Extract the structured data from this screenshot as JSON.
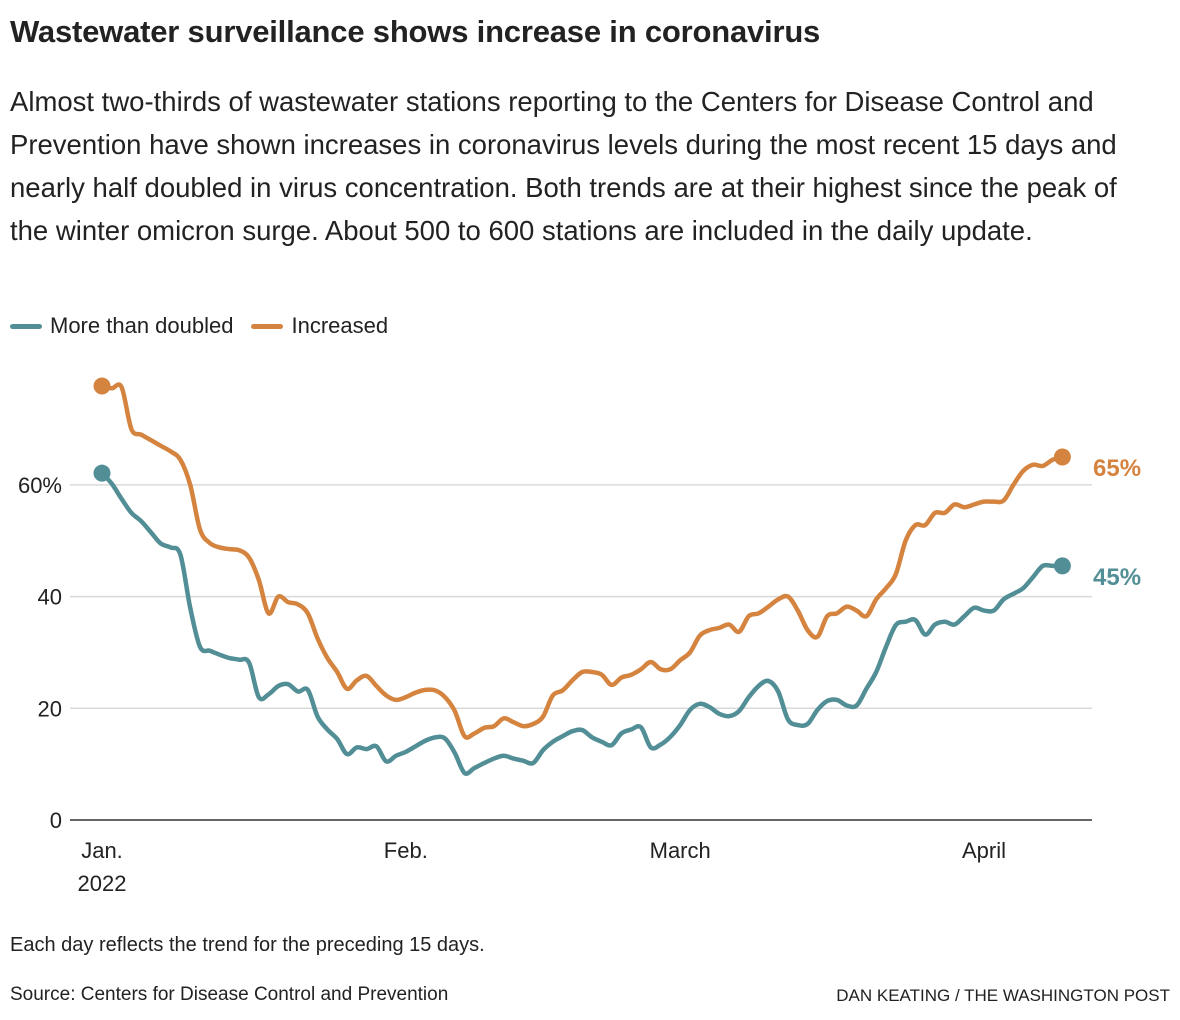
{
  "title": "Wastewater surveillance shows increase in coronavirus",
  "subtitle": "Almost two-thirds of wastewater stations reporting to the Centers for Disease Control and Prevention have shown increases in coronavirus levels during the most recent 15 days and nearly half doubled in virus concentration. Both trends are at their highest since the peak of the winter omicron surge. About 500 to 600 stations are included in the daily update.",
  "note": "Each day reflects the trend for the preceding 15 days.",
  "source": "Source: Centers for Disease Control and Prevention",
  "credit": "DAN KEATING / THE WASHINGTON POST",
  "chart_data": {
    "type": "line",
    "xlabel": "",
    "ylabel": "",
    "ylim": [
      0,
      80
    ],
    "grid": true,
    "legend_position": "top-left",
    "y_ticks": [
      {
        "value": 0,
        "label": "0"
      },
      {
        "value": 20,
        "label": "20"
      },
      {
        "value": 40,
        "label": "40"
      },
      {
        "value": 60,
        "label": "60%"
      }
    ],
    "x_ticks": [
      {
        "date": "2022-01-01",
        "label": "Jan.",
        "sublabel": "2022"
      },
      {
        "date": "2022-02-01",
        "label": "Feb."
      },
      {
        "date": "2022-03-01",
        "label": "March"
      },
      {
        "date": "2022-04-01",
        "label": "April"
      }
    ],
    "x": [
      "2022-01-01",
      "2022-01-02",
      "2022-01-03",
      "2022-01-04",
      "2022-01-05",
      "2022-01-06",
      "2022-01-07",
      "2022-01-08",
      "2022-01-09",
      "2022-01-10",
      "2022-01-11",
      "2022-01-12",
      "2022-01-13",
      "2022-01-14",
      "2022-01-15",
      "2022-01-16",
      "2022-01-17",
      "2022-01-18",
      "2022-01-19",
      "2022-01-20",
      "2022-01-21",
      "2022-01-22",
      "2022-01-23",
      "2022-01-24",
      "2022-01-25",
      "2022-01-26",
      "2022-01-27",
      "2022-01-28",
      "2022-01-29",
      "2022-01-30",
      "2022-01-31",
      "2022-02-01",
      "2022-02-02",
      "2022-02-03",
      "2022-02-04",
      "2022-02-05",
      "2022-02-06",
      "2022-02-07",
      "2022-02-08",
      "2022-02-09",
      "2022-02-10",
      "2022-02-11",
      "2022-02-12",
      "2022-02-13",
      "2022-02-14",
      "2022-02-15",
      "2022-02-16",
      "2022-02-17",
      "2022-02-18",
      "2022-02-19",
      "2022-02-20",
      "2022-02-21",
      "2022-02-22",
      "2022-02-23",
      "2022-02-24",
      "2022-02-25",
      "2022-02-26",
      "2022-02-27",
      "2022-02-28",
      "2022-03-01",
      "2022-03-02",
      "2022-03-03",
      "2022-03-04",
      "2022-03-05",
      "2022-03-06",
      "2022-03-07",
      "2022-03-08",
      "2022-03-09",
      "2022-03-10",
      "2022-03-11",
      "2022-03-12",
      "2022-03-13",
      "2022-03-14",
      "2022-03-15",
      "2022-03-16",
      "2022-03-17",
      "2022-03-18",
      "2022-03-19",
      "2022-03-20",
      "2022-03-21",
      "2022-03-22",
      "2022-03-23",
      "2022-03-24",
      "2022-03-25",
      "2022-03-26",
      "2022-03-27",
      "2022-03-28",
      "2022-03-29",
      "2022-03-30",
      "2022-03-31",
      "2022-04-01",
      "2022-04-02",
      "2022-04-03",
      "2022-04-04",
      "2022-04-05",
      "2022-04-06",
      "2022-04-07",
      "2022-04-08",
      "2022-04-09"
    ],
    "series": [
      {
        "name": "More than doubled",
        "color": "#528e96",
        "end_label": "45%",
        "values": [
          62.1,
          60.2,
          57.5,
          55,
          53.5,
          51.5,
          49.5,
          48.8,
          47.5,
          38,
          31,
          30.3,
          29.6,
          29,
          28.7,
          28.2,
          22,
          22.5,
          24,
          24.3,
          23,
          23.3,
          18.5,
          16.2,
          14.5,
          11.8,
          13,
          12.7,
          13.2,
          10.5,
          11.5,
          12.2,
          13.2,
          14.2,
          14.8,
          14.6,
          12,
          8.4,
          9.3,
          10.2,
          11,
          11.5,
          11,
          10.6,
          10.2,
          12.5,
          14,
          15,
          15.9,
          16.1,
          14.8,
          14,
          13.4,
          15.5,
          16.2,
          16.6,
          13,
          13.5,
          14.9,
          17,
          19.7,
          20.8,
          20.2,
          19,
          18.6,
          19.5,
          22,
          24,
          24.9,
          23,
          18,
          17,
          17.2,
          19.7,
          21.3,
          21.5,
          20.5,
          20.5,
          23.5,
          26.5,
          31,
          34.9,
          35.5,
          35.8,
          33.2,
          35,
          35.5,
          35,
          36.5,
          38,
          37.5,
          37.5,
          39.5,
          40.5,
          41.5,
          43.5,
          45.5,
          45.5,
          45.5
        ]
      },
      {
        "name": "Increased",
        "color": "#d5843f",
        "end_label": "65%",
        "values": [
          77.7,
          77.3,
          77.5,
          70,
          69,
          68,
          67,
          66,
          64.5,
          60,
          52,
          49.6,
          48.8,
          48.5,
          48.3,
          47,
          43,
          37,
          40,
          39,
          38.6,
          37,
          32.5,
          29,
          26.5,
          23.5,
          25,
          25.8,
          24,
          22.3,
          21.5,
          22,
          22.8,
          23.3,
          23.2,
          22,
          19.5,
          15,
          15.5,
          16.5,
          16.8,
          18.2,
          17.5,
          16.8,
          17.2,
          18.5,
          22.3,
          23.2,
          25,
          26.5,
          26.5,
          26,
          24.2,
          25.5,
          26,
          27,
          28.3,
          27,
          27,
          28.6,
          30,
          33,
          34,
          34.4,
          35,
          33.7,
          36.5,
          37,
          38.2,
          39.5,
          40,
          37.5,
          34,
          32.8,
          36.5,
          37,
          38.2,
          37.5,
          36.5,
          39.5,
          41.5,
          44,
          50,
          52.8,
          52.8,
          55,
          55,
          56.5,
          56,
          56.5,
          57,
          57,
          57.2,
          60,
          62.5,
          63.6,
          63.4,
          64.5,
          65
        ]
      }
    ]
  }
}
